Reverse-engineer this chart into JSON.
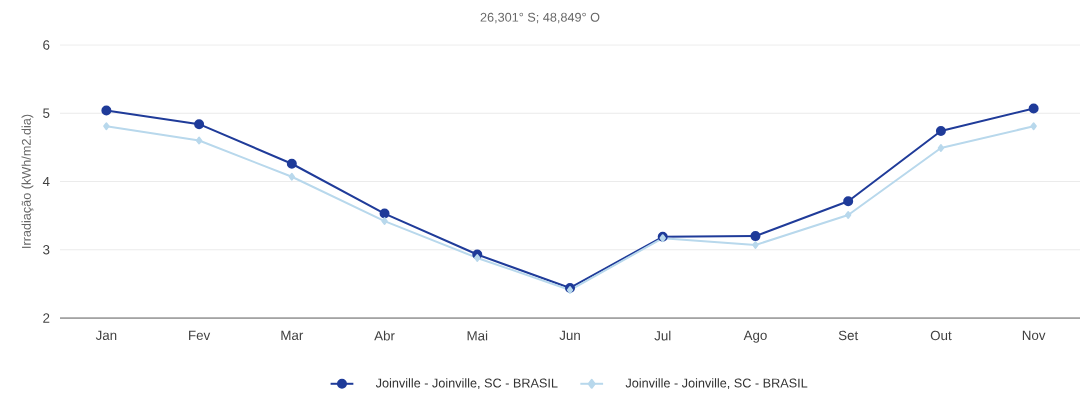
{
  "chart_data": {
    "type": "line",
    "subtitle": "26,301° S; 48,849° O",
    "ylabel": "Irradiação (kWh/m2.dia)",
    "categories": [
      "Jan",
      "Fev",
      "Mar",
      "Abr",
      "Mai",
      "Jun",
      "Jul",
      "Ago",
      "Set",
      "Out",
      "Nov"
    ],
    "series": [
      {
        "name": "Joinville - Joinville, SC - BRASIL",
        "color": "#1f3b99",
        "marker": "circle",
        "values": [
          5.04,
          4.84,
          4.26,
          3.53,
          2.93,
          2.44,
          3.19,
          3.2,
          3.71,
          4.74,
          5.07
        ]
      },
      {
        "name": "Joinville - Joinville, SC - BRASIL",
        "color": "#b8d8ec",
        "marker": "diamond",
        "values": [
          4.81,
          4.6,
          4.07,
          3.42,
          2.88,
          2.41,
          3.17,
          3.07,
          3.51,
          4.49,
          4.81
        ]
      }
    ],
    "ylim": [
      2,
      6
    ],
    "yticks": [
      2,
      3,
      4,
      5,
      6
    ],
    "grid": "y",
    "legend": "bottom",
    "line_style": "solid"
  }
}
